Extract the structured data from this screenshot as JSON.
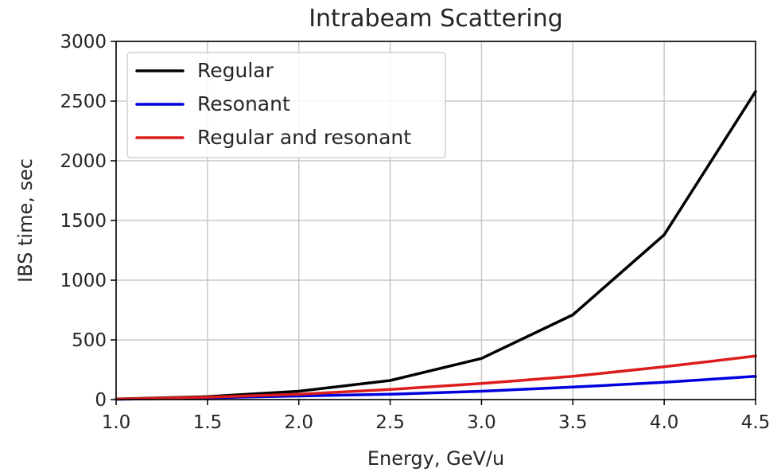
{
  "chart_data": {
    "type": "line",
    "title": "Intrabeam Scattering",
    "xlabel": "Energy, GeV/u",
    "ylabel": "IBS time, sec",
    "xlim": [
      1.0,
      4.5
    ],
    "ylim": [
      0,
      3000
    ],
    "xticks": [
      "1.0",
      "1.5",
      "2.0",
      "2.5",
      "3.0",
      "3.5",
      "4.0",
      "4.5"
    ],
    "yticks": [
      "0",
      "500",
      "1000",
      "1500",
      "2000",
      "2500",
      "3000"
    ],
    "grid": true,
    "legend_position": "top-left",
    "x": [
      1.0,
      1.5,
      2.0,
      2.5,
      3.0,
      3.5,
      4.0,
      4.5
    ],
    "series": [
      {
        "name": "Regular",
        "color": "#000000",
        "values": [
          5,
          25,
          70,
          160,
          345,
          710,
          1380,
          2580
        ]
      },
      {
        "name": "Resonant",
        "color": "#0000dd",
        "values": [
          3,
          15,
          30,
          45,
          70,
          105,
          145,
          195
        ]
      },
      {
        "name": "Regular and resonant",
        "color": "#dd1c1c",
        "values": [
          4,
          20,
          45,
          85,
          135,
          195,
          275,
          365
        ]
      }
    ]
  }
}
